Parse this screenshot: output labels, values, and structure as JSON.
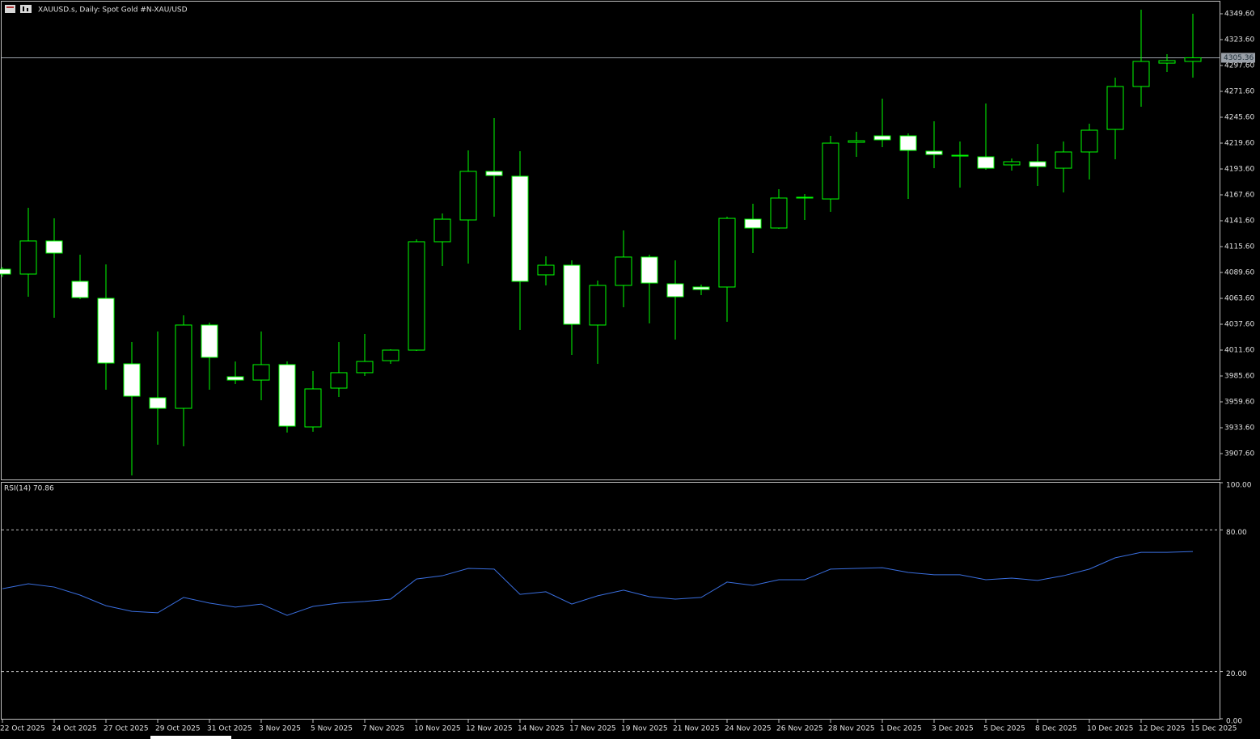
{
  "chart_data": [
    {
      "type": "candlestick",
      "title": "XAUUSD.s, Daily:  Spot Gold #N-XAU/USD",
      "categories": [
        "22 Oct 2025",
        null,
        "24 Oct 2025",
        null,
        "27 Oct 2025",
        null,
        "29 Oct 2025",
        null,
        "31 Oct 2025",
        null,
        "3 Nov 2025",
        null,
        "5 Nov 2025",
        null,
        "7 Nov 2025",
        null,
        "10 Nov 2025",
        null,
        "12 Nov 2025",
        null,
        "14 Nov 2025",
        null,
        "17 Nov 2025",
        null,
        "19 Nov 2025",
        null,
        "21 Nov 2025",
        null,
        "24 Nov 2025",
        null,
        "26 Nov 2025",
        null,
        "28 Nov 2025",
        null,
        "1 Dec 2025",
        null,
        "3 Dec 2025",
        null,
        "5 Dec 2025",
        null,
        "8 Dec 2025",
        null,
        "10 Dec 2025",
        null,
        "12 Dec 2025",
        null,
        "15 Dec 2025"
      ],
      "open": [
        4092.9,
        4088,
        4121.3,
        4080.7,
        4063.6,
        3997.8,
        3963.7,
        3953.1,
        4036.8,
        3984.8,
        3981.5,
        3997,
        3934.4,
        3973.4,
        3988.9,
        4001,
        4011.6,
        4120.5,
        4142.4,
        4191.2,
        4186.3,
        4087.2,
        4096.9,
        4036.8,
        4076.6,
        4105.1,
        4078.2,
        4075,
        4075,
        4143.2,
        4134.3,
        4164.4,
        4163.5,
        4220.4,
        4226.9,
        4226.9,
        4211.5,
        4206.6,
        4205.8,
        4197.7,
        4200.9,
        4194.4,
        4210.7,
        4233.4,
        4276.5,
        4300,
        4301.7
      ],
      "high": [
        4095,
        4154.6,
        4144,
        4107.5,
        4097.7,
        4019.7,
        4030.3,
        4046.5,
        4039.2,
        4000.1,
        4030.3,
        4000.2,
        3990.5,
        4019.7,
        4027.9,
        4012.4,
        4122.9,
        4148.9,
        4212.3,
        4244.8,
        4211.5,
        4105.9,
        4101.8,
        4081.5,
        4131.9,
        4107.5,
        4101.8,
        4077.4,
        4145.7,
        4158.7,
        4173.3,
        4168.4,
        4226.9,
        4231,
        4264.3,
        4229.4,
        4241.5,
        4221.2,
        4259.4,
        4204.2,
        4218.8,
        4221.2,
        4239.1,
        4285.4,
        4353.7,
        4309,
        4349.6
      ],
      "low": [
        4085,
        4065.2,
        4044.1,
        4062.8,
        3971.8,
        3885.7,
        3916.5,
        3914.9,
        3971.8,
        3977.5,
        3961.2,
        3928.7,
        3929.5,
        3964.5,
        3985.6,
        3997.8,
        4010.8,
        4096.1,
        4098.5,
        4145.7,
        4031.9,
        4076.6,
        4006.7,
        3997.8,
        4054.7,
        4038.4,
        4022.2,
        4066.9,
        4040,
        4109.1,
        4133.5,
        4142.4,
        4150.5,
        4205.8,
        4215.5,
        4163.5,
        4194.4,
        4174.9,
        4192.8,
        4192,
        4176.5,
        4170,
        4183,
        4203.4,
        4256.2,
        4291.1,
        4285.4
      ],
      "close": [
        4088,
        4121.3,
        4109.1,
        4064.4,
        3998.6,
        3965.3,
        3953.1,
        4036.8,
        4004.3,
        3981.5,
        3997,
        3935.2,
        3972.6,
        3988.9,
        4000.2,
        4011.6,
        4120.5,
        4143.2,
        4191.2,
        4187.1,
        4080.7,
        4096.9,
        4037.6,
        4076.6,
        4105.1,
        4079,
        4065.2,
        4072.5,
        4144,
        4134.3,
        4164.4,
        4165.2,
        4219.6,
        4222,
        4222.9,
        4212.3,
        4208.2,
        4207.4,
        4194.4,
        4200.9,
        4196,
        4210.7,
        4232.6,
        4276.5,
        4301.7,
        4302.5,
        4305.36
      ],
      "last_price": 4305.36,
      "up_color": "#000000",
      "down_color": "#ffffff",
      "wick_color": "#00ff00",
      "ylim": [
        3881.6,
        4361.8
      ],
      "yticks": [
        {
          "value": 4349.6,
          "label": "4349.60"
        },
        {
          "value": 4323.6,
          "label": "4323.60"
        },
        {
          "value": 4297.6,
          "label": "4297.60"
        },
        {
          "value": 4271.6,
          "label": "4271.60"
        },
        {
          "value": 4245.6,
          "label": "4245.60"
        },
        {
          "value": 4219.6,
          "label": "4219.60"
        },
        {
          "value": 4193.6,
          "label": "4193.60"
        },
        {
          "value": 4167.6,
          "label": "4167.60"
        },
        {
          "value": 4141.6,
          "label": "4141.60"
        },
        {
          "value": 4115.6,
          "label": "4115.60"
        },
        {
          "value": 4089.6,
          "label": "4089.60"
        },
        {
          "value": 4063.6,
          "label": "4063.60"
        },
        {
          "value": 4037.6,
          "label": "4037.60"
        },
        {
          "value": 4011.6,
          "label": "4011.60"
        },
        {
          "value": 3985.6,
          "label": "3985.60"
        },
        {
          "value": 3959.6,
          "label": "3959.60"
        },
        {
          "value": 3933.6,
          "label": "3933.60"
        },
        {
          "value": 3907.6,
          "label": "3907.60"
        }
      ]
    },
    {
      "type": "line",
      "title": "RSI(14) 70.86",
      "series": [
        {
          "name": "RSI(14)",
          "color": "#3a6fe0",
          "values": [
            55.1,
            57.2,
            55.8,
            52.4,
            47.9,
            45.5,
            44.9,
            51.4,
            49.0,
            47.3,
            48.6,
            43.8,
            47.6,
            49.0,
            49.7,
            50.7,
            59.2,
            60.6,
            63.7,
            63.4,
            52.7,
            53.8,
            48.6,
            52.1,
            54.5,
            51.7,
            50.7,
            51.4,
            57.9,
            56.5,
            58.9,
            58.9,
            63.4,
            63.7,
            64.0,
            62.0,
            61.0,
            61.0,
            58.9,
            59.6,
            58.6,
            60.6,
            63.4,
            68.2,
            70.5,
            70.5,
            70.86
          ]
        }
      ],
      "levels": [
        80,
        20
      ],
      "ylim": [
        0,
        100
      ],
      "yticks": [
        {
          "value": 100,
          "label": "100.00"
        },
        {
          "value": 80,
          "label": "80.00"
        },
        {
          "value": 20,
          "label": "20.00"
        },
        {
          "value": 0,
          "label": "0.00"
        }
      ]
    }
  ]
}
